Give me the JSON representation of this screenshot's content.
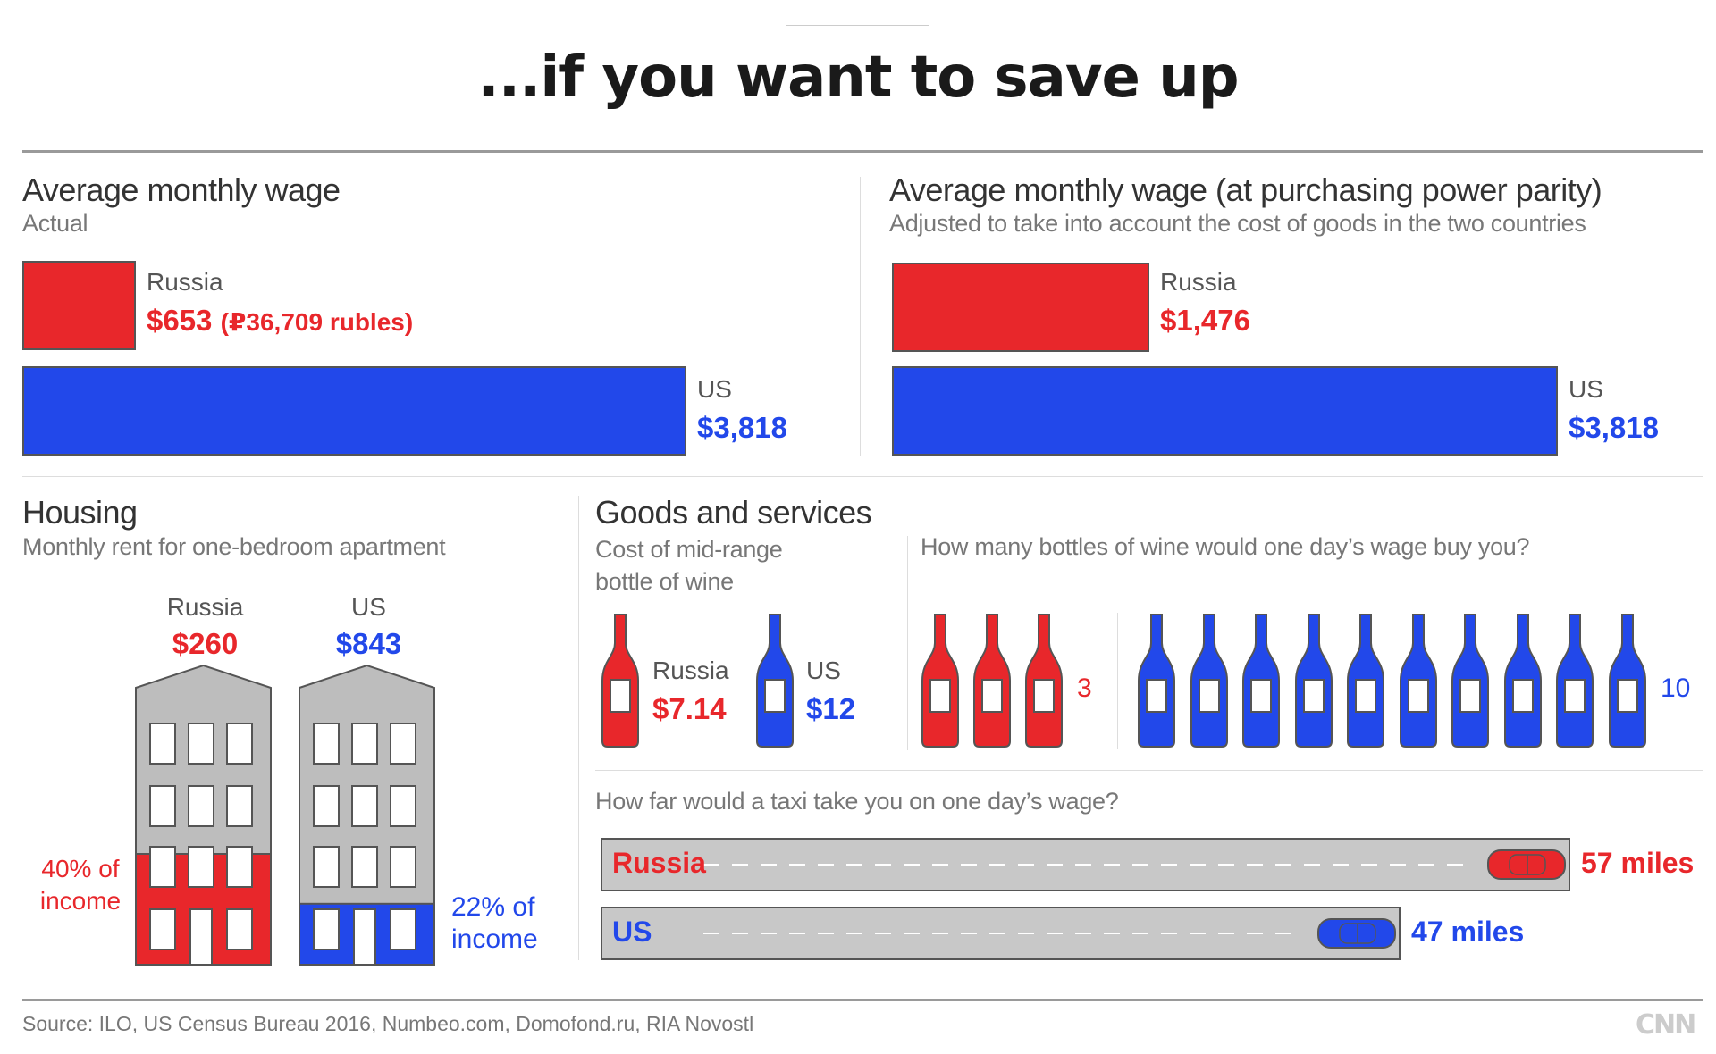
{
  "title": "...if you want to save up",
  "colors": {
    "russia": "#e8272b",
    "us": "#2248ea",
    "building": "#bdbdbd",
    "road": "#c8c8c8"
  },
  "chart_data": [
    {
      "type": "bar",
      "id": "wage_actual",
      "title": "Average monthly wage",
      "subtitle": "Actual",
      "categories": [
        "Russia",
        "US"
      ],
      "values": [
        653,
        3818
      ],
      "value_labels": [
        "$653",
        "$3,818"
      ],
      "extra_label": "(₽36,709 rubles)"
    },
    {
      "type": "bar",
      "id": "wage_ppp",
      "title": "Average monthly wage (at purchasing power parity)",
      "subtitle": "Adjusted to take into account the cost of goods in the two countries",
      "categories": [
        "Russia",
        "US"
      ],
      "values": [
        1476,
        3818
      ],
      "value_labels": [
        "$1,476",
        "$3,818"
      ]
    },
    {
      "type": "bar",
      "id": "housing",
      "title": "Housing",
      "subtitle": "Monthly rent for one-bedroom apartment",
      "categories": [
        "Russia",
        "US"
      ],
      "values": [
        260,
        843
      ],
      "value_labels": [
        "$260",
        "$843"
      ],
      "income_share": [
        40,
        22
      ],
      "income_labels": [
        [
          "40% of",
          "income"
        ],
        [
          "22% of",
          "income"
        ]
      ]
    },
    {
      "type": "bar",
      "id": "wine_cost",
      "title": "Goods and services",
      "subtitle": [
        "Cost of mid-range",
        "bottle of wine"
      ],
      "categories": [
        "Russia",
        "US"
      ],
      "values": [
        7.14,
        12
      ],
      "value_labels": [
        "$7.14",
        "$12"
      ]
    },
    {
      "type": "bar",
      "id": "wine_bottles",
      "subtitle": "How many bottles of wine would one day’s wage buy you?",
      "categories": [
        "Russia",
        "US"
      ],
      "values": [
        3,
        10
      ],
      "value_labels": [
        "3",
        "10"
      ]
    },
    {
      "type": "bar",
      "id": "taxi",
      "subtitle": "How far would a taxi take you on one day’s wage?",
      "categories": [
        "Russia",
        "US"
      ],
      "values": [
        57,
        47
      ],
      "value_labels": [
        "57 miles",
        "47 miles"
      ]
    }
  ],
  "footer": {
    "source": "Source: ILO, US Census Bureau 2016, Numbeo.com, Domofond.ru, RIA Novostl",
    "logo": "CNN"
  }
}
